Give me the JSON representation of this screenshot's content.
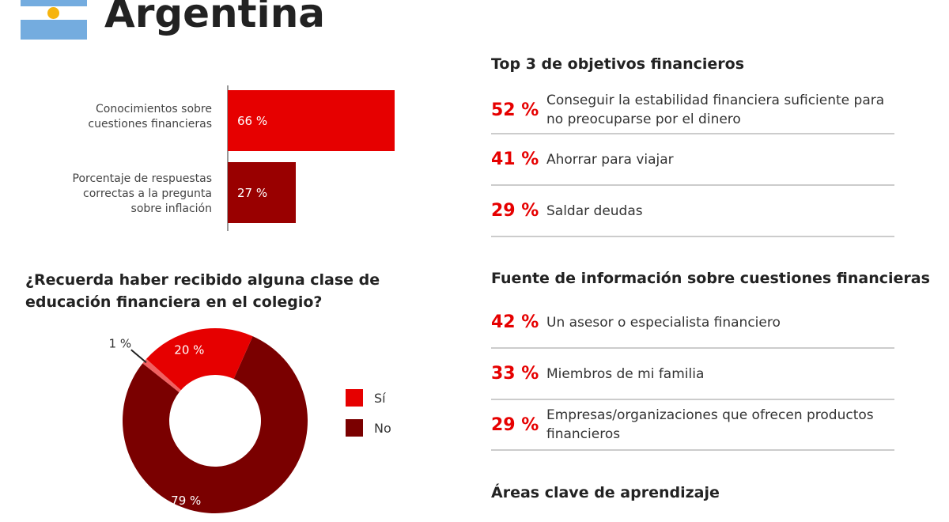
{
  "header": {
    "title": "Argentina",
    "flag_icon": "argentina-flag-icon"
  },
  "chart_data": [
    {
      "type": "bar",
      "orientation": "horizontal",
      "categories": [
        "Conocimientos sobre cuestiones financieras",
        "Porcentaje de respuestas correctas a la pregunta sobre inflación"
      ],
      "values": [
        66,
        27
      ],
      "labels": [
        "66 %",
        "27 %"
      ],
      "colors": [
        "#e60000",
        "#990000"
      ],
      "xlim": [
        0,
        100
      ]
    },
    {
      "type": "pie",
      "donut": true,
      "title": "¿Recuerda haber recibido alguna clase de educación financiera en el colegio?",
      "slices": [
        {
          "name": "No",
          "value": 79,
          "label": "79 %",
          "color": "#7a0000"
        },
        {
          "name": "",
          "value": 1,
          "label": "1 %",
          "color": "#f06060"
        },
        {
          "name": "Sí",
          "value": 20,
          "label": "20 %",
          "color": "#e60000"
        }
      ],
      "legend": [
        "Sí",
        "No"
      ],
      "legend_position": "right"
    }
  ],
  "objetivos": {
    "title": "Top 3 de objetivos financieros",
    "items": [
      {
        "pct": "52 %",
        "text": "Conseguir la estabilidad financiera suficiente para no preocuparse por el dinero"
      },
      {
        "pct": "41 %",
        "text": "Ahorrar para viajar"
      },
      {
        "pct": "29 %",
        "text": "Saldar deudas"
      }
    ]
  },
  "fuente": {
    "title": "Fuente de información sobre cuestiones financieras",
    "items": [
      {
        "pct": "42 %",
        "text": "Un asesor o especialista financiero"
      },
      {
        "pct": "33 %",
        "text": "Miembros de mi familia"
      },
      {
        "pct": "29 %",
        "text": "Empresas/organizaciones que ofrecen productos financieros"
      }
    ]
  },
  "areas": {
    "title": "Áreas clave de aprendizaje"
  }
}
